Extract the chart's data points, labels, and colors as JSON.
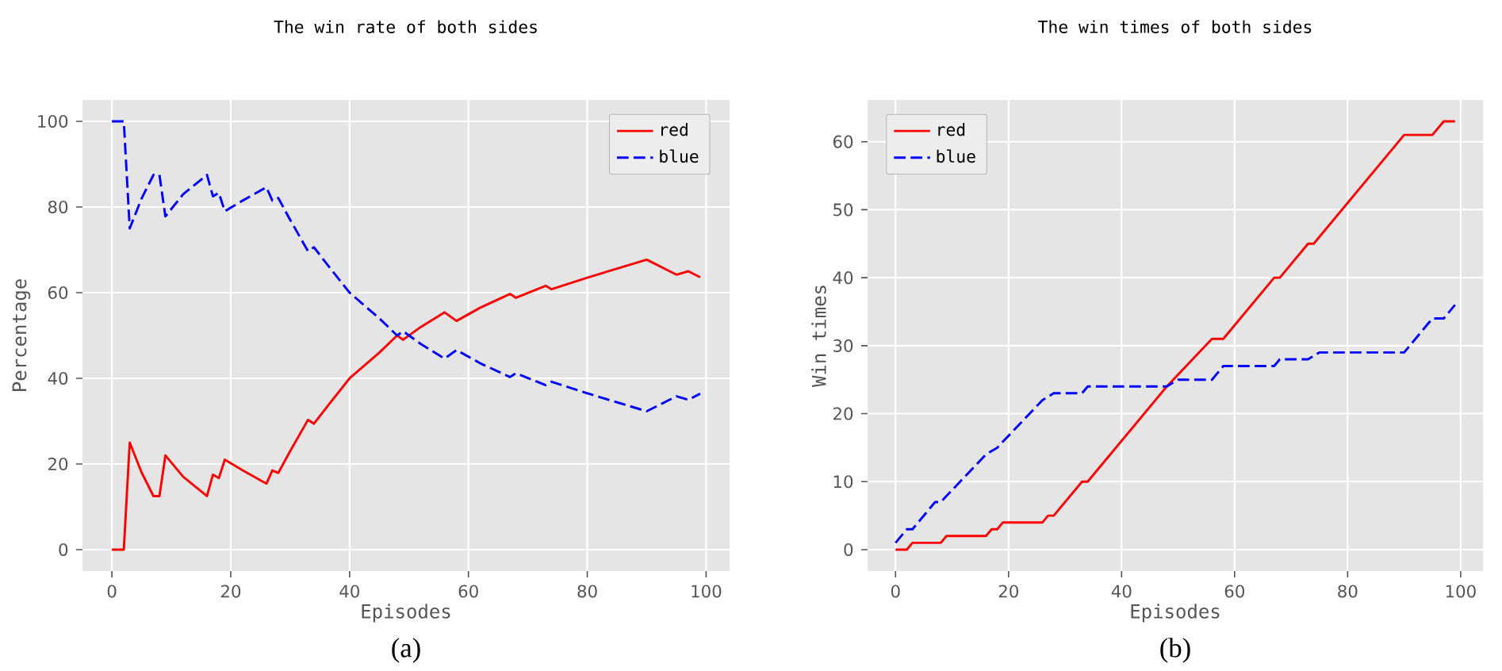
{
  "chart_data": [
    {
      "type": "line",
      "title": "The win rate of both sides",
      "xlabel": "Episodes",
      "ylabel": "Percentage",
      "annotations": [
        "(a)"
      ],
      "xlim": [
        -4.95,
        103.95
      ],
      "ylim": [
        -5,
        105
      ],
      "xticks": [
        0,
        20,
        40,
        60,
        80,
        100
      ],
      "yticks": [
        0,
        20,
        40,
        60,
        80,
        100
      ],
      "grid": true,
      "legend": "top right",
      "series": [
        {
          "name": "red",
          "color": "#ff0000",
          "line_style": "solid",
          "x": [
            0,
            2,
            3,
            5,
            7,
            8,
            9,
            12,
            16,
            17,
            18,
            19,
            22,
            26,
            27,
            28,
            30,
            33,
            34,
            36,
            40,
            45,
            48,
            49,
            52,
            56,
            58,
            62,
            67,
            68,
            73,
            74,
            80,
            90,
            95,
            97,
            99
          ],
          "values": [
            0,
            0,
            25,
            18,
            12.5,
            12.5,
            22,
            17,
            12.5,
            17.5,
            16.7,
            21,
            18.5,
            15.4,
            18.5,
            17.9,
            23,
            30.3,
            29.4,
            33,
            40,
            46,
            50,
            49,
            52,
            55.4,
            53.4,
            56.5,
            59.7,
            58.8,
            61.6,
            60.8,
            63.5,
            67.7,
            64.2,
            65,
            63.6
          ]
        },
        {
          "name": "blue",
          "color": "#0000ff",
          "line_style": "dashed",
          "x": [
            0,
            2,
            3,
            5,
            7,
            8,
            9,
            12,
            16,
            17,
            18,
            19,
            22,
            26,
            27,
            28,
            30,
            33,
            34,
            36,
            40,
            45,
            48,
            49,
            52,
            56,
            58,
            62,
            67,
            68,
            73,
            74,
            80,
            90,
            95,
            97,
            99
          ],
          "values": [
            100,
            100,
            75,
            82,
            87.5,
            87.5,
            77.8,
            83,
            87.5,
            82.5,
            83.3,
            79,
            81.5,
            84.6,
            81.5,
            82.1,
            77,
            69.7,
            70.6,
            67,
            60,
            54,
            50,
            51,
            48,
            44.6,
            46.6,
            43.5,
            40.3,
            41.2,
            38.4,
            39.2,
            36.5,
            32.3,
            35.8,
            35,
            36.4
          ]
        }
      ]
    },
    {
      "type": "line",
      "title": "The win times of both sides",
      "xlabel": "Episodes",
      "ylabel": "Win times",
      "annotations": [
        "(b)"
      ],
      "xlim": [
        -4.95,
        103.95
      ],
      "ylim": [
        -3.15,
        66.15
      ],
      "xticks": [
        0,
        20,
        40,
        60,
        80,
        100
      ],
      "yticks": [
        0,
        10,
        20,
        30,
        40,
        50,
        60
      ],
      "grid": true,
      "legend": "top left",
      "series": [
        {
          "name": "red",
          "color": "#ff0000",
          "line_style": "solid",
          "x": [
            0,
            2,
            3,
            8,
            9,
            16,
            17,
            18,
            19,
            26,
            27,
            28,
            33,
            34,
            48,
            56,
            58,
            67,
            68,
            73,
            74,
            90,
            95,
            97,
            99
          ],
          "values": [
            0,
            0,
            1,
            1,
            2,
            2,
            3,
            3,
            4,
            4,
            5,
            5,
            10,
            10,
            24,
            31,
            31,
            40,
            40,
            45,
            45,
            61,
            61,
            63,
            63
          ]
        },
        {
          "name": "blue",
          "color": "#0000ff",
          "line_style": "dashed",
          "x": [
            0,
            2,
            3,
            7,
            8,
            16,
            18,
            26,
            28,
            33,
            34,
            48,
            50,
            56,
            58,
            67,
            68,
            73,
            75,
            90,
            95,
            97,
            99
          ],
          "values": [
            1,
            3,
            3,
            7,
            7,
            14,
            15,
            22,
            23,
            23,
            24,
            24,
            25,
            25,
            27,
            27,
            28,
            28,
            29,
            29,
            34,
            34,
            36
          ]
        }
      ]
    }
  ]
}
